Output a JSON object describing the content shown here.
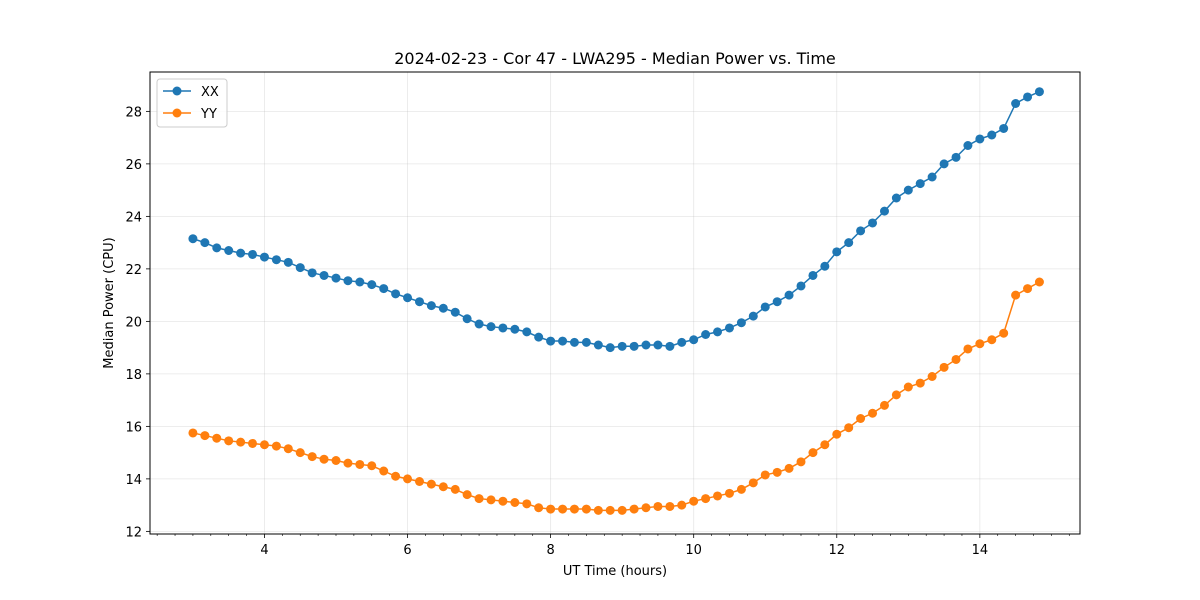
{
  "chart_data": {
    "type": "line",
    "title": "2024-02-23 - Cor 47 - LWA295 - Median Power vs. Time",
    "xlabel": "UT Time (hours)",
    "ylabel": "Median Power (CPU)",
    "xlim": [
      2.4,
      15.4
    ],
    "ylim": [
      11.9,
      29.5
    ],
    "xticks": [
      4,
      6,
      8,
      10,
      12,
      14
    ],
    "yticks": [
      12,
      14,
      16,
      18,
      20,
      22,
      24,
      26,
      28
    ],
    "grid": true,
    "legend_position": "upper-left",
    "x": [
      3.0,
      3.167,
      3.333,
      3.5,
      3.667,
      3.833,
      4.0,
      4.167,
      4.333,
      4.5,
      4.667,
      4.833,
      5.0,
      5.167,
      5.333,
      5.5,
      5.667,
      5.833,
      6.0,
      6.167,
      6.333,
      6.5,
      6.667,
      6.833,
      7.0,
      7.167,
      7.333,
      7.5,
      7.667,
      7.833,
      8.0,
      8.167,
      8.333,
      8.5,
      8.667,
      8.833,
      9.0,
      9.167,
      9.333,
      9.5,
      9.667,
      9.833,
      10.0,
      10.167,
      10.333,
      10.5,
      10.667,
      10.833,
      11.0,
      11.167,
      11.333,
      11.5,
      11.667,
      11.833,
      12.0,
      12.167,
      12.333,
      12.5,
      12.667,
      12.833,
      13.0,
      13.167,
      13.333,
      13.5,
      13.667,
      13.833,
      14.0,
      14.167,
      14.333,
      14.5,
      14.667,
      14.833
    ],
    "series": [
      {
        "name": "XX",
        "color": "#1f77b4",
        "values": [
          23.15,
          23.0,
          22.8,
          22.7,
          22.6,
          22.55,
          22.45,
          22.35,
          22.25,
          22.05,
          21.85,
          21.75,
          21.65,
          21.55,
          21.5,
          21.4,
          21.25,
          21.05,
          20.9,
          20.75,
          20.6,
          20.5,
          20.35,
          20.1,
          19.9,
          19.8,
          19.75,
          19.7,
          19.6,
          19.4,
          19.25,
          19.25,
          19.2,
          19.2,
          19.1,
          19.0,
          19.05,
          19.05,
          19.1,
          19.1,
          19.05,
          19.2,
          19.3,
          19.5,
          19.6,
          19.75,
          19.95,
          20.2,
          20.55,
          20.75,
          21.0,
          21.35,
          21.75,
          22.1,
          22.65,
          23.0,
          23.45,
          23.75,
          24.2,
          24.7,
          25.0,
          25.25,
          25.5,
          26.0,
          26.25,
          26.7,
          26.95,
          27.1,
          27.35,
          28.3,
          28.55,
          28.75
        ]
      },
      {
        "name": "YY",
        "color": "#ff7f0e",
        "values": [
          15.75,
          15.65,
          15.55,
          15.45,
          15.4,
          15.35,
          15.3,
          15.25,
          15.15,
          15.0,
          14.85,
          14.75,
          14.7,
          14.6,
          14.55,
          14.5,
          14.3,
          14.1,
          14.0,
          13.9,
          13.8,
          13.7,
          13.6,
          13.4,
          13.25,
          13.2,
          13.15,
          13.1,
          13.05,
          12.9,
          12.85,
          12.85,
          12.85,
          12.85,
          12.8,
          12.8,
          12.8,
          12.85,
          12.9,
          12.95,
          12.95,
          13.0,
          13.15,
          13.25,
          13.35,
          13.45,
          13.6,
          13.85,
          14.15,
          14.25,
          14.4,
          14.65,
          15.0,
          15.3,
          15.7,
          15.95,
          16.3,
          16.5,
          16.8,
          17.2,
          17.5,
          17.65,
          17.9,
          18.25,
          18.55,
          18.95,
          19.15,
          19.3,
          19.55,
          21.0,
          21.25,
          21.5
        ]
      }
    ]
  }
}
